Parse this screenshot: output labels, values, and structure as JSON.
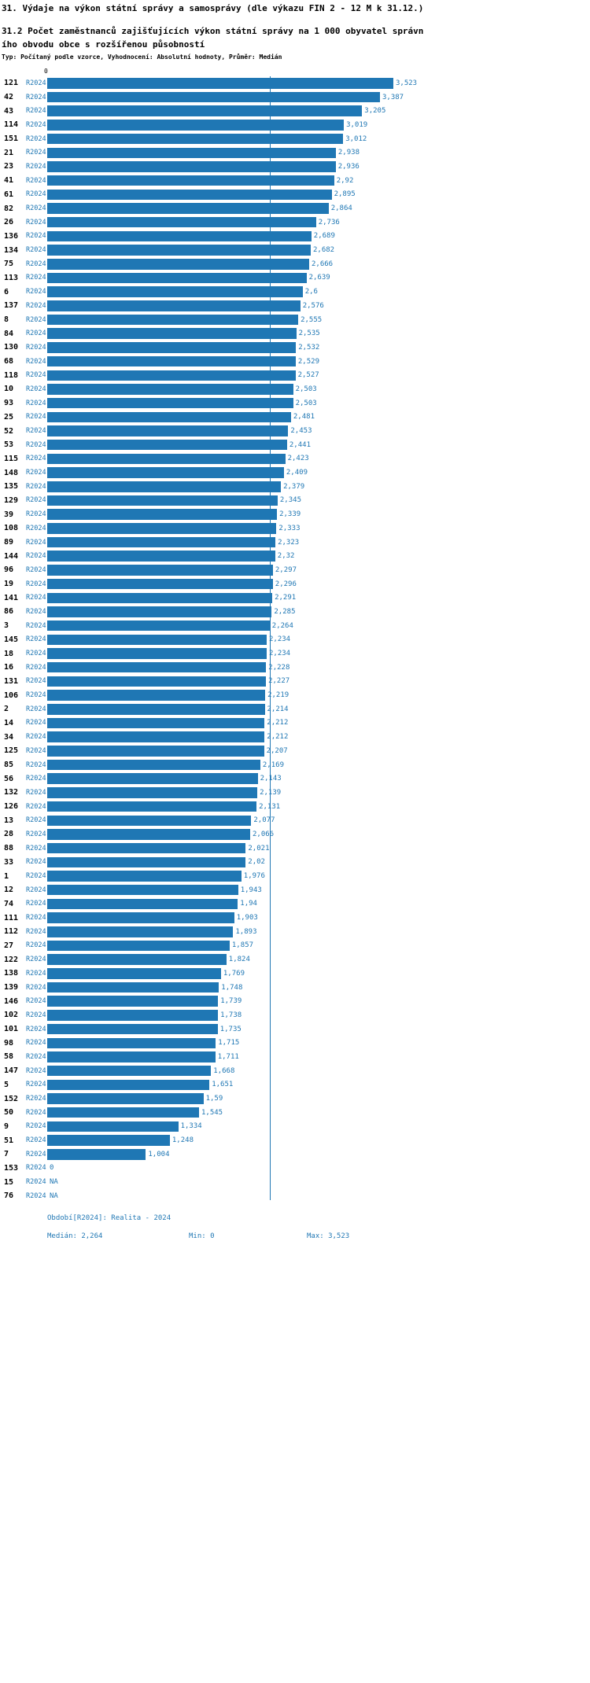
{
  "header": {
    "title": "31. Výdaje na výkon státní správy a samosprávy (dle výkazu FIN 2 - 12 M k 31.12.)",
    "subtitle": "31.2 Počet zaměstnanců zajišťujících výkon státní správy na 1 000 obyvatel správního obvodu obce s rozšířenou působností",
    "meta": "Typ: Počítaný podle vzorce, Vyhodnocení: Absolutní hodnoty, Průměr: Medián"
  },
  "chart_data": {
    "type": "bar",
    "orientation": "horizontal",
    "series_label": "R2024",
    "axis_top_label": "0",
    "xlim": [
      0,
      3.523
    ],
    "median": 2.264,
    "bar_color": "#1f77b4",
    "grid": false,
    "legend": "none",
    "rows": [
      {
        "id": "121",
        "value": 3.523,
        "display": "3,523"
      },
      {
        "id": "42",
        "value": 3.387,
        "display": "3,387"
      },
      {
        "id": "43",
        "value": 3.205,
        "display": "3,205"
      },
      {
        "id": "114",
        "value": 3.019,
        "display": "3,019"
      },
      {
        "id": "151",
        "value": 3.012,
        "display": "3,012"
      },
      {
        "id": "21",
        "value": 2.938,
        "display": "2,938"
      },
      {
        "id": "23",
        "value": 2.936,
        "display": "2,936"
      },
      {
        "id": "41",
        "value": 2.92,
        "display": "2,92"
      },
      {
        "id": "61",
        "value": 2.895,
        "display": "2,895"
      },
      {
        "id": "82",
        "value": 2.864,
        "display": "2,864"
      },
      {
        "id": "26",
        "value": 2.736,
        "display": "2,736"
      },
      {
        "id": "136",
        "value": 2.689,
        "display": "2,689"
      },
      {
        "id": "134",
        "value": 2.682,
        "display": "2,682"
      },
      {
        "id": "75",
        "value": 2.666,
        "display": "2,666"
      },
      {
        "id": "113",
        "value": 2.639,
        "display": "2,639"
      },
      {
        "id": "6",
        "value": 2.6,
        "display": "2,6"
      },
      {
        "id": "137",
        "value": 2.576,
        "display": "2,576"
      },
      {
        "id": "8",
        "value": 2.555,
        "display": "2,555"
      },
      {
        "id": "84",
        "value": 2.535,
        "display": "2,535"
      },
      {
        "id": "130",
        "value": 2.532,
        "display": "2,532"
      },
      {
        "id": "68",
        "value": 2.529,
        "display": "2,529"
      },
      {
        "id": "118",
        "value": 2.527,
        "display": "2,527"
      },
      {
        "id": "10",
        "value": 2.503,
        "display": "2,503"
      },
      {
        "id": "93",
        "value": 2.503,
        "display": "2,503"
      },
      {
        "id": "25",
        "value": 2.481,
        "display": "2,481"
      },
      {
        "id": "52",
        "value": 2.453,
        "display": "2,453"
      },
      {
        "id": "53",
        "value": 2.441,
        "display": "2,441"
      },
      {
        "id": "115",
        "value": 2.423,
        "display": "2,423"
      },
      {
        "id": "148",
        "value": 2.409,
        "display": "2,409"
      },
      {
        "id": "135",
        "value": 2.379,
        "display": "2,379"
      },
      {
        "id": "129",
        "value": 2.345,
        "display": "2,345"
      },
      {
        "id": "39",
        "value": 2.339,
        "display": "2,339"
      },
      {
        "id": "108",
        "value": 2.333,
        "display": "2,333"
      },
      {
        "id": "89",
        "value": 2.323,
        "display": "2,323"
      },
      {
        "id": "144",
        "value": 2.32,
        "display": "2,32"
      },
      {
        "id": "96",
        "value": 2.297,
        "display": "2,297"
      },
      {
        "id": "19",
        "value": 2.296,
        "display": "2,296"
      },
      {
        "id": "141",
        "value": 2.291,
        "display": "2,291"
      },
      {
        "id": "86",
        "value": 2.285,
        "display": "2,285"
      },
      {
        "id": "3",
        "value": 2.264,
        "display": "2,264"
      },
      {
        "id": "145",
        "value": 2.234,
        "display": "2,234"
      },
      {
        "id": "18",
        "value": 2.234,
        "display": "2,234"
      },
      {
        "id": "16",
        "value": 2.228,
        "display": "2,228"
      },
      {
        "id": "131",
        "value": 2.227,
        "display": "2,227"
      },
      {
        "id": "106",
        "value": 2.219,
        "display": "2,219"
      },
      {
        "id": "2",
        "value": 2.214,
        "display": "2,214"
      },
      {
        "id": "14",
        "value": 2.212,
        "display": "2,212"
      },
      {
        "id": "34",
        "value": 2.212,
        "display": "2,212"
      },
      {
        "id": "125",
        "value": 2.207,
        "display": "2,207"
      },
      {
        "id": "85",
        "value": 2.169,
        "display": "2,169"
      },
      {
        "id": "56",
        "value": 2.143,
        "display": "2,143"
      },
      {
        "id": "132",
        "value": 2.139,
        "display": "2,139"
      },
      {
        "id": "126",
        "value": 2.131,
        "display": "2,131"
      },
      {
        "id": "13",
        "value": 2.077,
        "display": "2,077"
      },
      {
        "id": "28",
        "value": 2.066,
        "display": "2,066"
      },
      {
        "id": "88",
        "value": 2.021,
        "display": "2,021"
      },
      {
        "id": "33",
        "value": 2.02,
        "display": "2,02"
      },
      {
        "id": "1",
        "value": 1.976,
        "display": "1,976"
      },
      {
        "id": "12",
        "value": 1.943,
        "display": "1,943"
      },
      {
        "id": "74",
        "value": 1.94,
        "display": "1,94"
      },
      {
        "id": "111",
        "value": 1.903,
        "display": "1,903"
      },
      {
        "id": "112",
        "value": 1.893,
        "display": "1,893"
      },
      {
        "id": "27",
        "value": 1.857,
        "display": "1,857"
      },
      {
        "id": "122",
        "value": 1.824,
        "display": "1,824"
      },
      {
        "id": "138",
        "value": 1.769,
        "display": "1,769"
      },
      {
        "id": "139",
        "value": 1.748,
        "display": "1,748"
      },
      {
        "id": "146",
        "value": 1.739,
        "display": "1,739"
      },
      {
        "id": "102",
        "value": 1.738,
        "display": "1,738"
      },
      {
        "id": "101",
        "value": 1.735,
        "display": "1,735"
      },
      {
        "id": "98",
        "value": 1.715,
        "display": "1,715"
      },
      {
        "id": "58",
        "value": 1.711,
        "display": "1,711"
      },
      {
        "id": "147",
        "value": 1.668,
        "display": "1,668"
      },
      {
        "id": "5",
        "value": 1.651,
        "display": "1,651"
      },
      {
        "id": "152",
        "value": 1.59,
        "display": "1,59"
      },
      {
        "id": "50",
        "value": 1.545,
        "display": "1,545"
      },
      {
        "id": "9",
        "value": 1.334,
        "display": "1,334"
      },
      {
        "id": "51",
        "value": 1.248,
        "display": "1,248"
      },
      {
        "id": "7",
        "value": 1.004,
        "display": "1,004"
      },
      {
        "id": "153",
        "value": 0,
        "display": "0"
      },
      {
        "id": "15",
        "value": null,
        "display": "NA"
      },
      {
        "id": "76",
        "value": null,
        "display": "NA"
      }
    ],
    "footer": {
      "period": "Období[R2024]: Realita - 2024",
      "median_label": "Medián: 2,264",
      "min_label": "Min: 0",
      "max_label": "Max: 3,523"
    }
  }
}
